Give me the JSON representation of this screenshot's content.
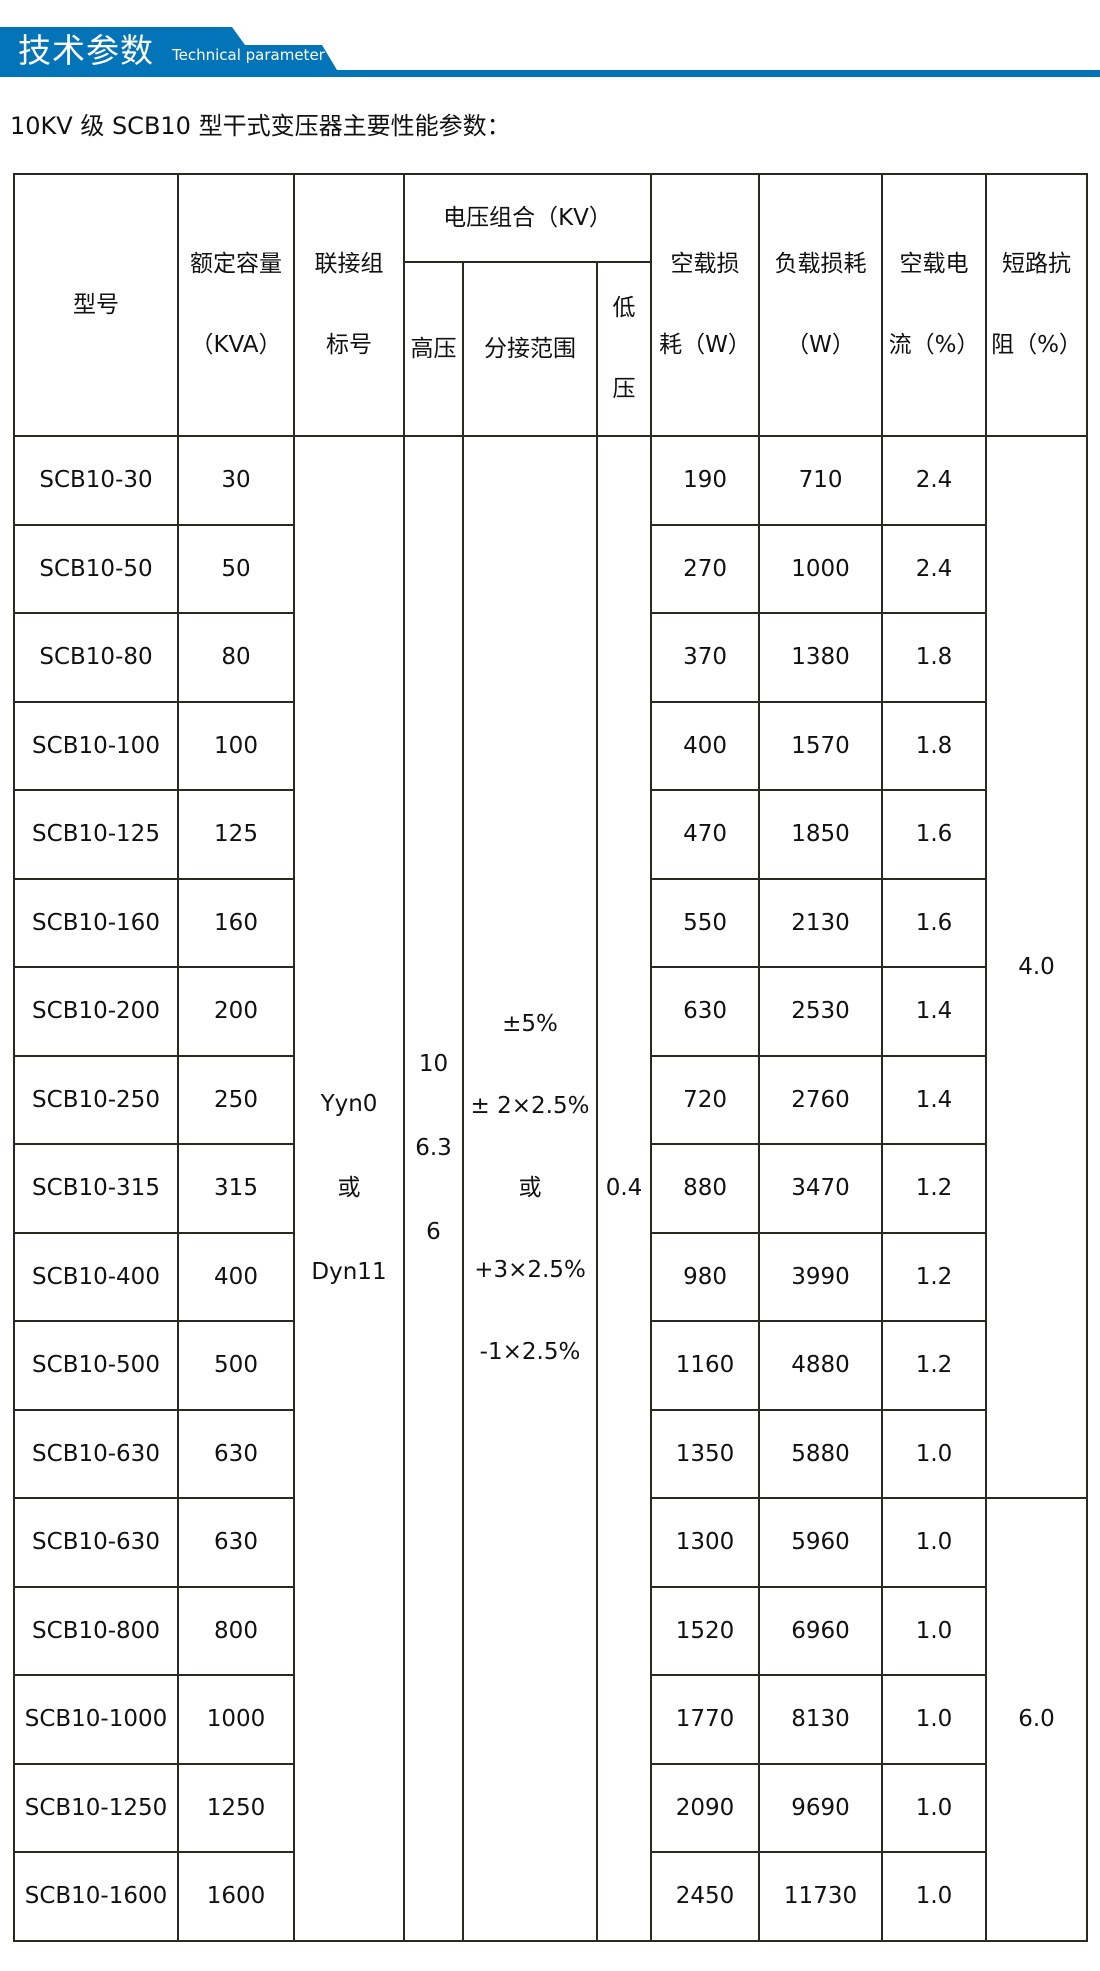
{
  "banner": {
    "title": "技术参数",
    "subtitle": "Technical parameter",
    "color": "#0474b8"
  },
  "doc_title": "10KV 级 SCB10 型干式变压器主要性能参数：",
  "table": {
    "headers": {
      "model": "型号",
      "capacity": [
        "额定容量",
        "（KVA）"
      ],
      "connection": [
        "联接组",
        "标号"
      ],
      "voltage_group": "电压组合（KV）",
      "high_voltage": "高压",
      "tap_range": "分接范围",
      "low_voltage": [
        "低",
        "压"
      ],
      "no_load_loss": [
        "空载损",
        "耗（W）"
      ],
      "load_loss": [
        "负载损耗",
        "（W）"
      ],
      "no_load_current": [
        "空载电",
        "流（%）"
      ],
      "impedance": [
        "短路抗",
        "阻（%）"
      ]
    },
    "merged": {
      "connection": [
        "Yyn0",
        "或",
        "Dyn11"
      ],
      "high_voltage": [
        "10",
        "6.3",
        "6"
      ],
      "tap_range": [
        "±5%",
        "± 2×2.5%",
        "或",
        "+3×2.5%",
        "-1×2.5%"
      ],
      "low_voltage": "0.4",
      "impedance_group1": "4.0",
      "impedance_group2": "6.0"
    },
    "rows": [
      {
        "model": "SCB10-30",
        "capacity": "30",
        "no_load_loss": "190",
        "load_loss": "710",
        "no_load_current": "2.4"
      },
      {
        "model": "SCB10-50",
        "capacity": "50",
        "no_load_loss": "270",
        "load_loss": "1000",
        "no_load_current": "2.4"
      },
      {
        "model": "SCB10-80",
        "capacity": "80",
        "no_load_loss": "370",
        "load_loss": "1380",
        "no_load_current": "1.8"
      },
      {
        "model": "SCB10-100",
        "capacity": "100",
        "no_load_loss": "400",
        "load_loss": "1570",
        "no_load_current": "1.8"
      },
      {
        "model": "SCB10-125",
        "capacity": "125",
        "no_load_loss": "470",
        "load_loss": "1850",
        "no_load_current": "1.6"
      },
      {
        "model": "SCB10-160",
        "capacity": "160",
        "no_load_loss": "550",
        "load_loss": "2130",
        "no_load_current": "1.6"
      },
      {
        "model": "SCB10-200",
        "capacity": "200",
        "no_load_loss": "630",
        "load_loss": "2530",
        "no_load_current": "1.4"
      },
      {
        "model": "SCB10-250",
        "capacity": "250",
        "no_load_loss": "720",
        "load_loss": "2760",
        "no_load_current": "1.4"
      },
      {
        "model": "SCB10-315",
        "capacity": "315",
        "no_load_loss": "880",
        "load_loss": "3470",
        "no_load_current": "1.2"
      },
      {
        "model": "SCB10-400",
        "capacity": "400",
        "no_load_loss": "980",
        "load_loss": "3990",
        "no_load_current": "1.2"
      },
      {
        "model": "SCB10-500",
        "capacity": "500",
        "no_load_loss": "1160",
        "load_loss": "4880",
        "no_load_current": "1.2"
      },
      {
        "model": "SCB10-630",
        "capacity": "630",
        "no_load_loss": "1350",
        "load_loss": "5880",
        "no_load_current": "1.0"
      },
      {
        "model": "SCB10-630",
        "capacity": "630",
        "no_load_loss": "1300",
        "load_loss": "5960",
        "no_load_current": "1.0"
      },
      {
        "model": "SCB10-800",
        "capacity": "800",
        "no_load_loss": "1520",
        "load_loss": "6960",
        "no_load_current": "1.0"
      },
      {
        "model": "SCB10-1000",
        "capacity": "1000",
        "no_load_loss": "1770",
        "load_loss": "8130",
        "no_load_current": "1.0"
      },
      {
        "model": "SCB10-1250",
        "capacity": "1250",
        "no_load_loss": "2090",
        "load_loss": "9690",
        "no_load_current": "1.0"
      },
      {
        "model": "SCB10-1600",
        "capacity": "1600",
        "no_load_loss": "2450",
        "load_loss": "11730",
        "no_load_current": "1.0"
      }
    ]
  }
}
